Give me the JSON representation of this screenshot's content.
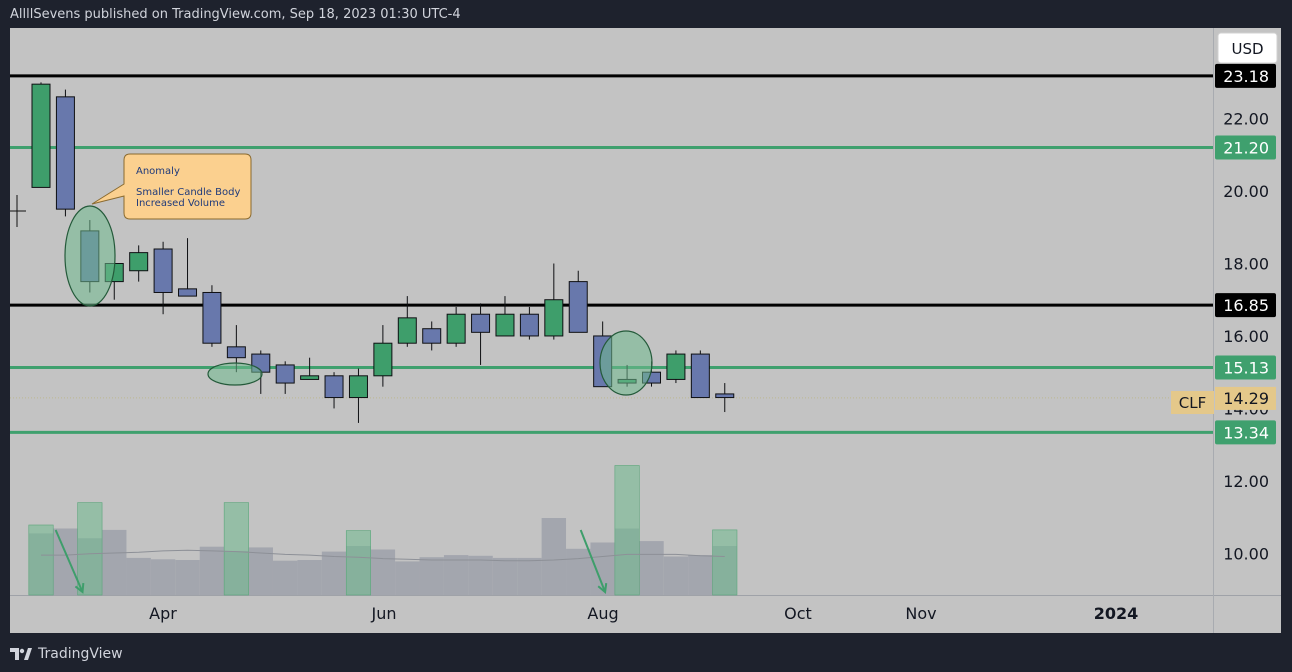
{
  "header": {
    "text": "AllllSevens published on TradingView.com, Sep 18, 2023 01:30 UTC-4"
  },
  "footer": {
    "brand": "TradingView",
    "icon": "tradingview-logo-icon"
  },
  "currency_button": {
    "label": "USD"
  },
  "symbol_label": "CLF",
  "colors": {
    "background_frame": "#1e222d",
    "plot_bg": "#c3c3c3",
    "up_candle": "#3e9e6b",
    "down_candle": "#6878ac",
    "black_level": "#000000",
    "green_level": "#3fa06e",
    "volume_bar": "#a3a6ae",
    "volume_highlight": "#6fb98e",
    "callout_fill": "#fbd08f",
    "callout_text": "#1f3a7a"
  },
  "annotation": {
    "title": "Anomaly",
    "line1": "Smaller Candle Body",
    "line2": "Increased Volume"
  },
  "chart_data": {
    "type": "candlestick",
    "timeframe": "weekly",
    "price_axis": {
      "ylim": [
        8.85,
        24.5
      ],
      "ticks": [
        "22.00",
        "20.00",
        "18.00",
        "16.00",
        "14.00",
        "12.00",
        "10.00"
      ],
      "tick_values": [
        22,
        20,
        18,
        16,
        14,
        12,
        10
      ]
    },
    "time_axis": {
      "ticks": [
        "Apr",
        "Jun",
        "Aug",
        "Oct",
        "Nov",
        "2024"
      ]
    },
    "levels": [
      {
        "value": 23.18,
        "label": "23.18",
        "color": "#000000"
      },
      {
        "value": 21.2,
        "label": "21.20",
        "color": "#3fa06e"
      },
      {
        "value": 16.85,
        "label": "16.85",
        "color": "#000000"
      },
      {
        "value": 15.13,
        "label": "15.13",
        "color": "#3fa06e"
      },
      {
        "value": 13.34,
        "label": "13.34",
        "color": "#3fa06e"
      }
    ],
    "last_price": {
      "value": 14.29,
      "label": "14.29"
    },
    "candles": [
      {
        "o": 20.1,
        "h": 23.0,
        "l": 20.1,
        "c": 22.95
      },
      {
        "o": 22.6,
        "h": 22.8,
        "l": 19.3,
        "c": 19.5
      },
      {
        "o": 18.9,
        "h": 19.2,
        "l": 17.2,
        "c": 17.5
      },
      {
        "o": 17.5,
        "h": 18.0,
        "l": 17.0,
        "c": 18.0
      },
      {
        "o": 17.8,
        "h": 18.5,
        "l": 17.5,
        "c": 18.3
      },
      {
        "o": 18.4,
        "h": 18.6,
        "l": 16.6,
        "c": 17.2
      },
      {
        "o": 17.3,
        "h": 18.7,
        "l": 17.1,
        "c": 17.1
      },
      {
        "o": 17.2,
        "h": 17.4,
        "l": 15.7,
        "c": 15.8
      },
      {
        "o": 15.7,
        "h": 16.3,
        "l": 15.0,
        "c": 15.4
      },
      {
        "o": 15.5,
        "h": 15.6,
        "l": 14.4,
        "c": 15.0
      },
      {
        "o": 15.2,
        "h": 15.3,
        "l": 14.4,
        "c": 14.7
      },
      {
        "o": 14.8,
        "h": 15.4,
        "l": 14.8,
        "c": 14.9
      },
      {
        "o": 14.9,
        "h": 15.0,
        "l": 14.0,
        "c": 14.3
      },
      {
        "o": 14.3,
        "h": 15.1,
        "l": 13.6,
        "c": 14.9
      },
      {
        "o": 14.9,
        "h": 16.3,
        "l": 14.6,
        "c": 15.8
      },
      {
        "o": 15.8,
        "h": 17.1,
        "l": 15.7,
        "c": 16.5
      },
      {
        "o": 16.2,
        "h": 16.4,
        "l": 15.6,
        "c": 15.8
      },
      {
        "o": 15.8,
        "h": 16.8,
        "l": 15.7,
        "c": 16.6
      },
      {
        "o": 16.6,
        "h": 16.9,
        "l": 15.2,
        "c": 16.1
      },
      {
        "o": 16.0,
        "h": 17.1,
        "l": 16.0,
        "c": 16.6
      },
      {
        "o": 16.6,
        "h": 16.8,
        "l": 15.9,
        "c": 16.0
      },
      {
        "o": 16.0,
        "h": 18.0,
        "l": 15.9,
        "c": 17.0
      },
      {
        "o": 17.5,
        "h": 17.8,
        "l": 16.1,
        "c": 16.1
      },
      {
        "o": 16.0,
        "h": 16.4,
        "l": 14.6,
        "c": 14.6
      },
      {
        "o": 14.7,
        "h": 15.2,
        "l": 14.6,
        "c": 14.8
      },
      {
        "o": 15.0,
        "h": 15.3,
        "l": 14.6,
        "c": 14.7
      },
      {
        "o": 14.8,
        "h": 15.6,
        "l": 14.7,
        "c": 15.5
      },
      {
        "o": 15.5,
        "h": 15.6,
        "l": 14.3,
        "c": 14.3
      },
      {
        "o": 14.4,
        "h": 14.7,
        "l": 13.9,
        "c": 14.3
      }
    ],
    "volume": [
      88,
      95,
      81,
      93,
      53,
      51,
      50,
      69,
      63,
      68,
      49,
      50,
      62,
      70,
      65,
      48,
      54,
      57,
      56,
      53,
      53,
      110,
      66,
      75,
      95,
      77,
      55,
      57,
      70
    ],
    "volume_ma": [
      57,
      57,
      59,
      60,
      61,
      63,
      64,
      63,
      62,
      60,
      58,
      57,
      55,
      54,
      52,
      51,
      50,
      50,
      50,
      49,
      49,
      50,
      52,
      55,
      58,
      58,
      58,
      56,
      55
    ],
    "volume_highlights": [
      {
        "start": 0,
        "end": 1,
        "level": 100
      },
      {
        "start": 2,
        "end": 3,
        "level": 132
      },
      {
        "start": 8,
        "end": 9,
        "level": 132
      },
      {
        "start": 13,
        "end": 14,
        "level": 92
      },
      {
        "start": 24,
        "end": 25,
        "level": 185
      },
      {
        "start": 28,
        "end": 29,
        "level": 93
      }
    ],
    "volume_arrows": [
      {
        "from_index": 1.1,
        "to_index": 2.2
      },
      {
        "from_index": 22.6,
        "to_index": 23.6
      }
    ]
  }
}
